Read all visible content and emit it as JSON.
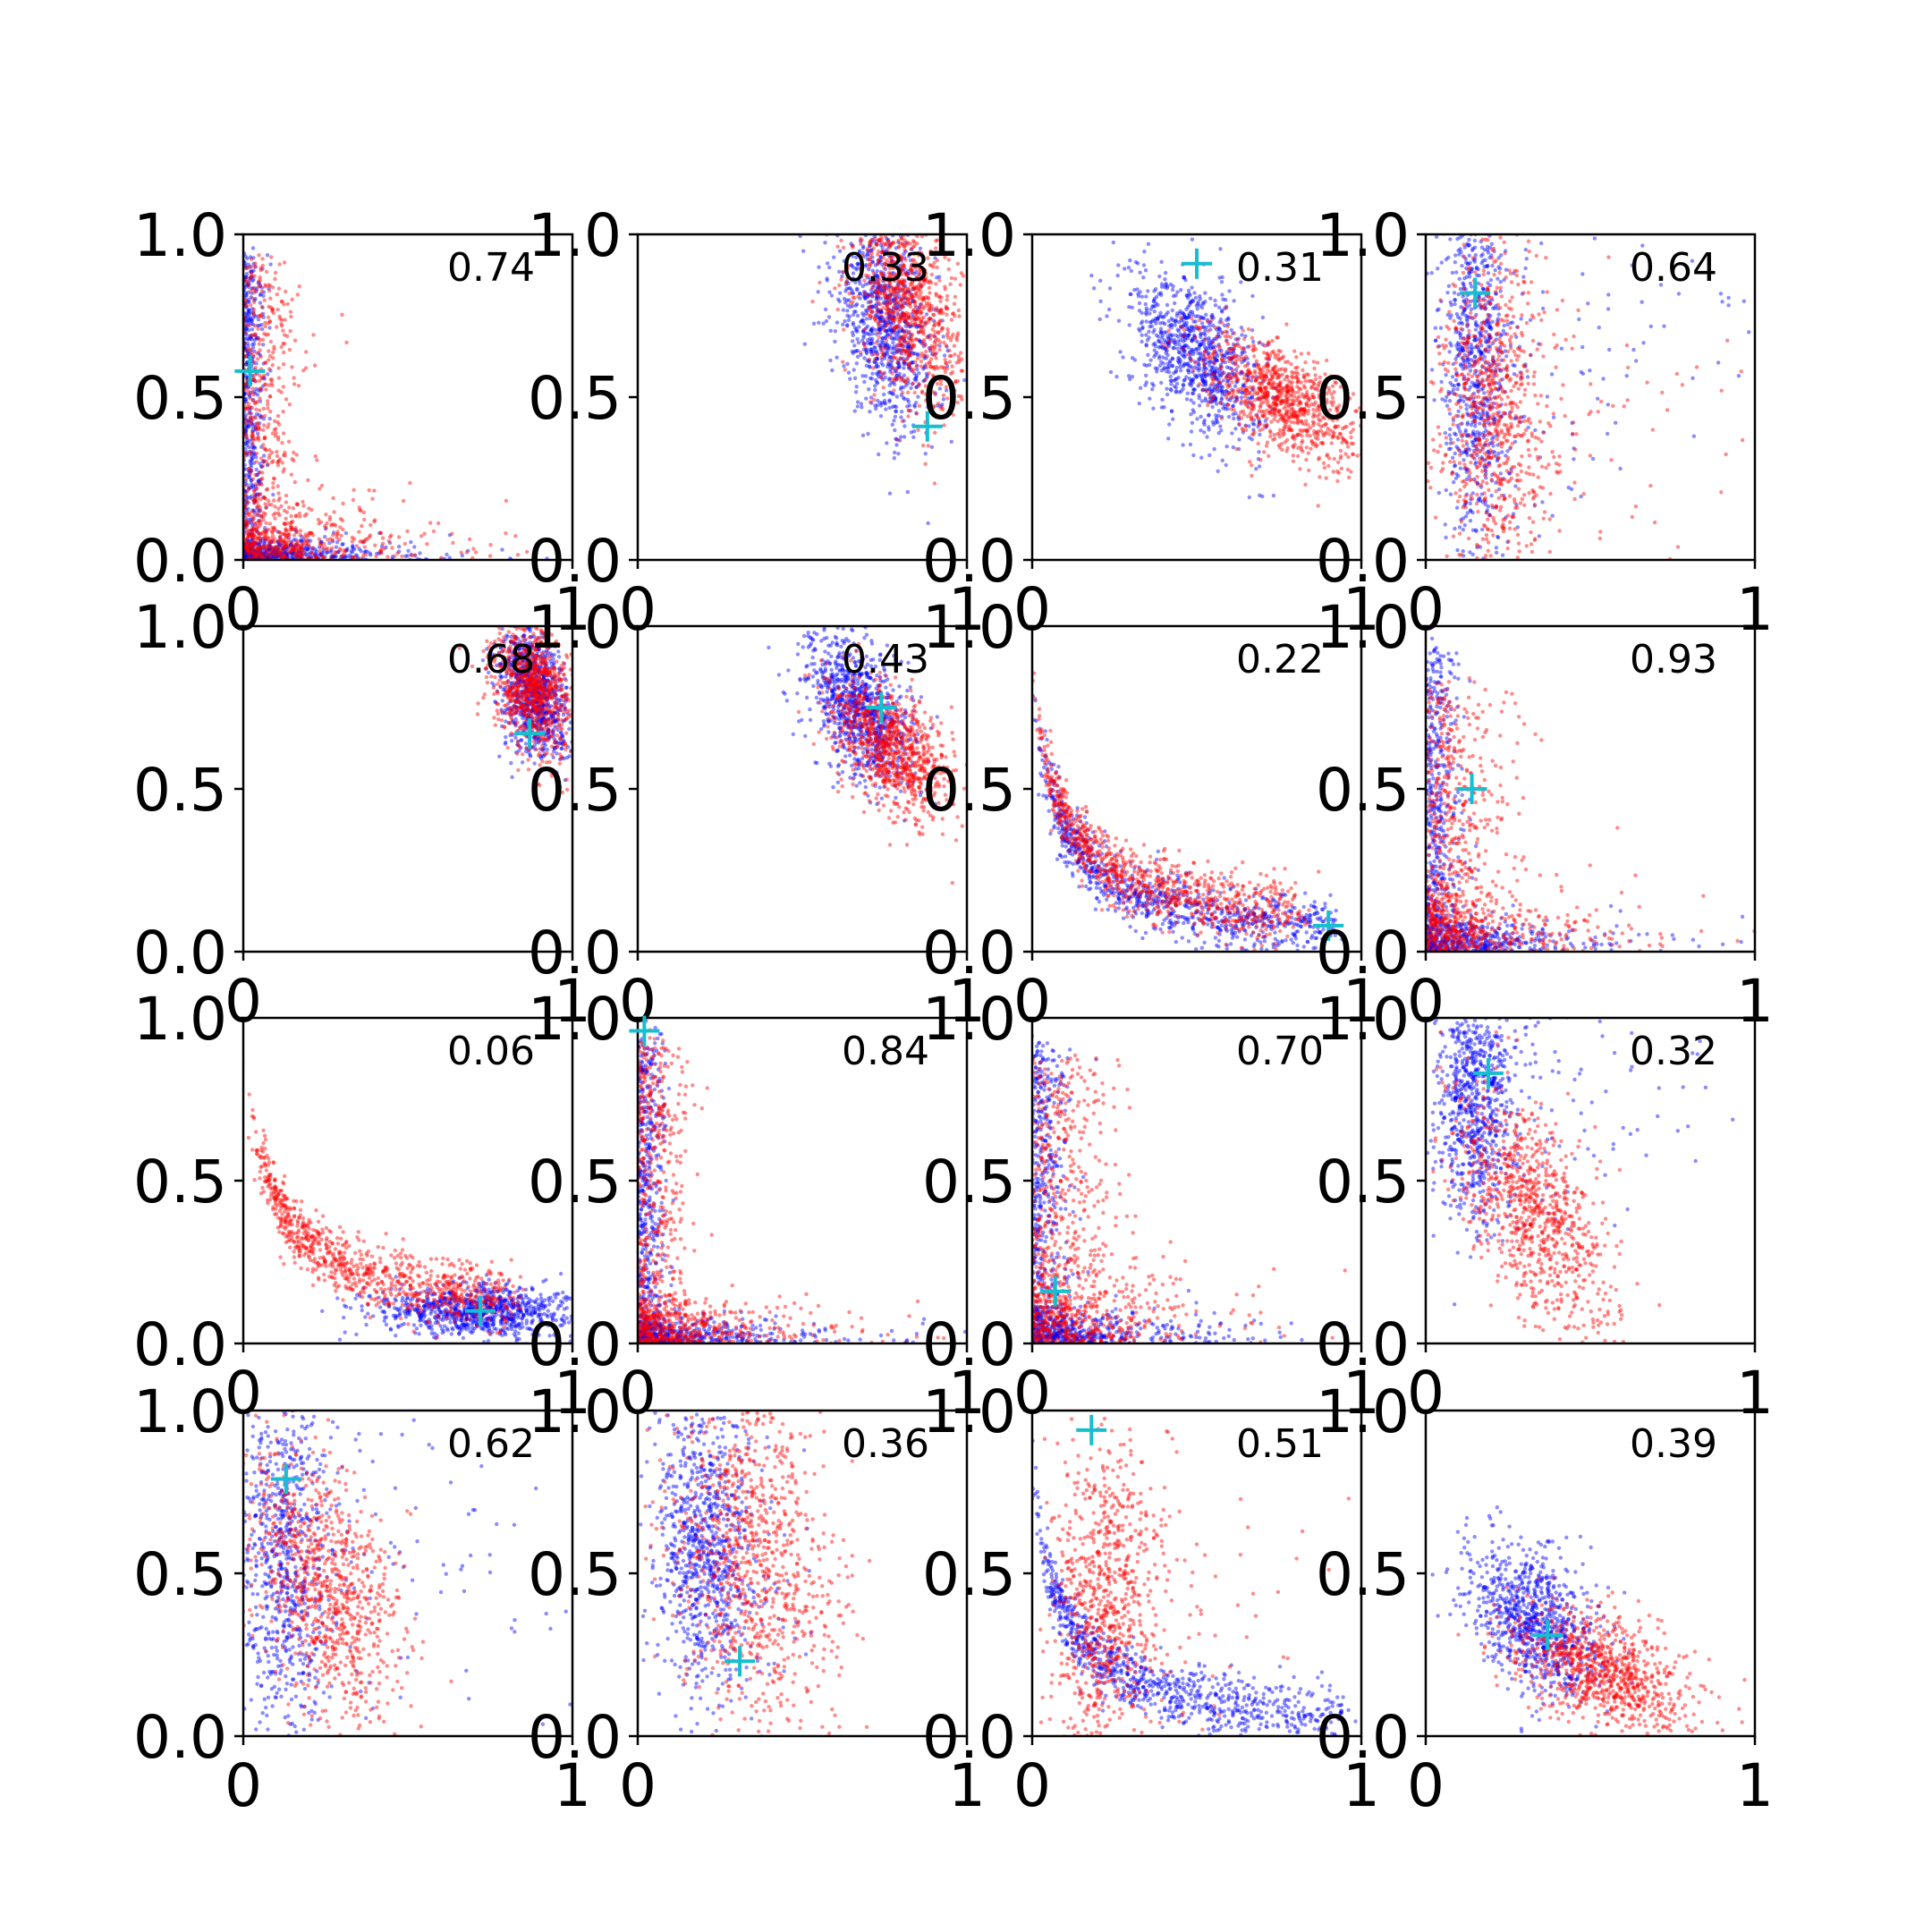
{
  "chart_data": {
    "type": "scatter",
    "layout": "4x4 grid",
    "xlim": [
      0,
      1
    ],
    "ylim": [
      0,
      1
    ],
    "x_tick_labels": [
      "0",
      "1"
    ],
    "y_tick_labels": [
      "0.0",
      "0.5",
      "1.0"
    ],
    "colors": {
      "series_a": "#0000ff",
      "series_b": "#ff0000",
      "marker": "#17becf"
    },
    "marker_symbol": "+",
    "panels": [
      {
        "label": "0.74",
        "marker": [
          0.02,
          0.58
        ],
        "blue": {
          "shape": "L",
          "cx": 0.03,
          "cy": 0.03,
          "spread": 0.9
        },
        "red": {
          "shape": "L",
          "cx": 0.08,
          "cy": 0.08,
          "spread": 0.9
        }
      },
      {
        "label": "0.33",
        "marker": [
          0.88,
          0.41
        ],
        "blue": {
          "shape": "blob",
          "cx": 0.75,
          "cy": 0.72,
          "sx": 0.08,
          "sy": 0.16,
          "rho": -0.4
        },
        "red": {
          "shape": "blob",
          "cx": 0.82,
          "cy": 0.78,
          "sx": 0.08,
          "sy": 0.15,
          "rho": -0.4
        }
      },
      {
        "label": "0.31",
        "marker": [
          0.5,
          0.91
        ],
        "blue": {
          "shape": "blob",
          "cx": 0.5,
          "cy": 0.63,
          "sx": 0.1,
          "sy": 0.13,
          "rho": -0.5
        },
        "red": {
          "shape": "blob",
          "cx": 0.75,
          "cy": 0.5,
          "sx": 0.12,
          "sy": 0.1,
          "rho": -0.6
        }
      },
      {
        "label": "0.64",
        "marker": [
          0.15,
          0.82
        ],
        "blue": {
          "shape": "vband",
          "cx": 0.15,
          "cy": 0.6,
          "sx": 0.05,
          "sy": 0.3,
          "tail": 0.4
        },
        "red": {
          "shape": "vband",
          "cx": 0.2,
          "cy": 0.45,
          "sx": 0.08,
          "sy": 0.28,
          "tail": 0.3
        }
      },
      {
        "label": "0.68",
        "marker": [
          0.87,
          0.67
        ],
        "blue": {
          "shape": "blob",
          "cx": 0.88,
          "cy": 0.8,
          "sx": 0.05,
          "sy": 0.1,
          "rho": -0.3
        },
        "red": {
          "shape": "blob",
          "cx": 0.88,
          "cy": 0.82,
          "sx": 0.06,
          "sy": 0.1,
          "rho": -0.3
        }
      },
      {
        "label": "0.43",
        "marker": [
          0.74,
          0.75
        ],
        "blue": {
          "shape": "blob",
          "cx": 0.67,
          "cy": 0.75,
          "sx": 0.08,
          "sy": 0.12,
          "rho": -0.5
        },
        "red": {
          "shape": "blob",
          "cx": 0.77,
          "cy": 0.63,
          "sx": 0.09,
          "sy": 0.1,
          "rho": -0.5
        }
      },
      {
        "label": "0.22",
        "marker": [
          0.9,
          0.08
        ],
        "blue": {
          "shape": "curve",
          "cx": 0.2,
          "cy": 0.08,
          "spread": 0.85
        },
        "red": {
          "shape": "curve",
          "cx": 0.18,
          "cy": 0.12,
          "spread": 0.75
        }
      },
      {
        "label": "0.93",
        "marker": [
          0.14,
          0.5
        ],
        "blue": {
          "shape": "L",
          "cx": 0.05,
          "cy": 0.05,
          "spread": 0.9
        },
        "red": {
          "shape": "L",
          "cx": 0.12,
          "cy": 0.1,
          "spread": 0.8
        }
      },
      {
        "label": "0.06",
        "marker": [
          0.72,
          0.1
        ],
        "blue": {
          "shape": "tail",
          "cx": 0.7,
          "cy": 0.1,
          "sx": 0.15,
          "sy": 0.04
        },
        "red": {
          "shape": "curve",
          "cx": 0.22,
          "cy": 0.14,
          "spread": 0.75
        }
      },
      {
        "label": "0.84",
        "marker": [
          0.02,
          0.96
        ],
        "blue": {
          "shape": "L",
          "cx": 0.04,
          "cy": 0.04,
          "spread": 0.9
        },
        "red": {
          "shape": "L",
          "cx": 0.07,
          "cy": 0.07,
          "spread": 0.9
        }
      },
      {
        "label": "0.70",
        "marker": [
          0.07,
          0.16
        ],
        "blue": {
          "shape": "L",
          "cx": 0.05,
          "cy": 0.05,
          "spread": 0.9
        },
        "red": {
          "shape": "L",
          "cx": 0.12,
          "cy": 0.12,
          "spread": 0.85
        }
      },
      {
        "label": "0.32",
        "marker": [
          0.19,
          0.83
        ],
        "blue": {
          "shape": "vband",
          "cx": 0.15,
          "cy": 0.75,
          "sx": 0.06,
          "sy": 0.2,
          "tail": 0.3
        },
        "red": {
          "shape": "blob",
          "cx": 0.33,
          "cy": 0.4,
          "sx": 0.12,
          "sy": 0.2,
          "rho": -0.6
        }
      },
      {
        "label": "0.62",
        "marker": [
          0.13,
          0.79
        ],
        "blue": {
          "shape": "vband",
          "cx": 0.12,
          "cy": 0.55,
          "sx": 0.07,
          "sy": 0.3,
          "tail": 0.5
        },
        "red": {
          "shape": "blob",
          "cx": 0.25,
          "cy": 0.45,
          "sx": 0.12,
          "sy": 0.22,
          "rho": -0.5
        }
      },
      {
        "label": "0.36",
        "marker": [
          0.31,
          0.23
        ],
        "blue": {
          "shape": "vband",
          "cx": 0.2,
          "cy": 0.6,
          "sx": 0.07,
          "sy": 0.25,
          "tail": 0.1
        },
        "red": {
          "shape": "blob",
          "cx": 0.35,
          "cy": 0.55,
          "sx": 0.13,
          "sy": 0.25,
          "rho": -0.2
        }
      },
      {
        "label": "0.51",
        "marker": [
          0.18,
          0.94
        ],
        "blue": {
          "shape": "curve",
          "cx": 0.15,
          "cy": 0.07,
          "spread": 0.9
        },
        "red": {
          "shape": "vband",
          "cx": 0.22,
          "cy": 0.4,
          "sx": 0.08,
          "sy": 0.28,
          "tail": 0.2
        }
      },
      {
        "label": "0.39",
        "marker": [
          0.37,
          0.31
        ],
        "blue": {
          "shape": "blob",
          "cx": 0.33,
          "cy": 0.35,
          "sx": 0.1,
          "sy": 0.12,
          "rho": -0.4
        },
        "red": {
          "shape": "blob",
          "cx": 0.53,
          "cy": 0.2,
          "sx": 0.14,
          "sy": 0.1,
          "rho": -0.5
        }
      }
    ]
  }
}
